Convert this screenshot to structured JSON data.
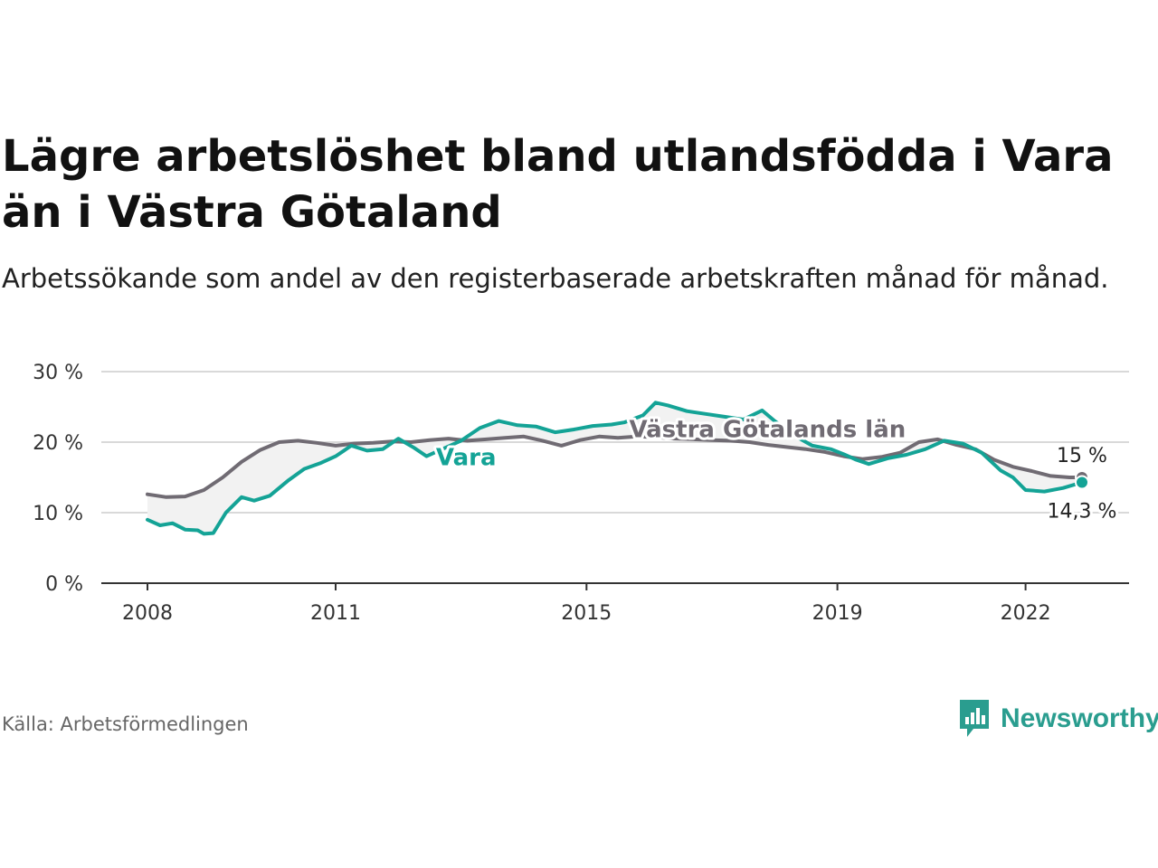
{
  "title": "Lägre arbetslöshet bland utlandsfödda i Vara än i Västra Götaland",
  "subtitle": "Arbetssökande som andel av den registerbaserade arbetskraften månad för månad.",
  "source": "Källa: Arbetsförmedlingen",
  "brand": {
    "name": "Newsworthy",
    "icon": "newsworthy-logo-icon",
    "color": "#2a9d8f"
  },
  "chart_data": {
    "type": "line",
    "title": "Lägre arbetslöshet bland utlandsfödda i Vara än i Västra Götaland",
    "ylim": [
      0,
      30
    ],
    "yticks": [
      0,
      10,
      20,
      30
    ],
    "ytick_labels": [
      "0 %",
      "10 %",
      "20 %",
      "30 %"
    ],
    "xlim": [
      2008.0,
      2022.9
    ],
    "xticks": [
      2008,
      2011,
      2015,
      2019,
      2022
    ],
    "xtick_labels": [
      "2008",
      "2011",
      "2015",
      "2019",
      "2022"
    ],
    "grid": true,
    "series": [
      {
        "name": "Västra Götalands län",
        "label": "Västra Götalands län",
        "color": "#706b73",
        "end_label": "15 %",
        "points": [
          [
            2008.0,
            12.6
          ],
          [
            2008.3,
            12.2
          ],
          [
            2008.6,
            12.3
          ],
          [
            2008.9,
            13.2
          ],
          [
            2009.2,
            15.0
          ],
          [
            2009.5,
            17.2
          ],
          [
            2009.8,
            18.9
          ],
          [
            2010.1,
            20.0
          ],
          [
            2010.4,
            20.2
          ],
          [
            2010.7,
            19.9
          ],
          [
            2011.0,
            19.5
          ],
          [
            2011.3,
            19.8
          ],
          [
            2011.6,
            19.9
          ],
          [
            2011.9,
            20.1
          ],
          [
            2012.2,
            20.0
          ],
          [
            2012.5,
            20.3
          ],
          [
            2012.8,
            20.5
          ],
          [
            2013.1,
            20.2
          ],
          [
            2013.4,
            20.4
          ],
          [
            2013.7,
            20.6
          ],
          [
            2014.0,
            20.8
          ],
          [
            2014.3,
            20.2
          ],
          [
            2014.6,
            19.5
          ],
          [
            2014.9,
            20.3
          ],
          [
            2015.2,
            20.8
          ],
          [
            2015.5,
            20.6
          ],
          [
            2015.8,
            20.8
          ],
          [
            2016.1,
            20.7
          ],
          [
            2016.4,
            20.5
          ],
          [
            2016.7,
            20.4
          ],
          [
            2017.0,
            20.3
          ],
          [
            2017.3,
            20.2
          ],
          [
            2017.6,
            20.0
          ],
          [
            2017.9,
            19.6
          ],
          [
            2018.2,
            19.3
          ],
          [
            2018.5,
            19.0
          ],
          [
            2018.8,
            18.6
          ],
          [
            2019.1,
            18.0
          ],
          [
            2019.4,
            17.6
          ],
          [
            2019.7,
            17.9
          ],
          [
            2020.0,
            18.5
          ],
          [
            2020.3,
            20.0
          ],
          [
            2020.6,
            20.4
          ],
          [
            2020.9,
            19.6
          ],
          [
            2021.2,
            19.0
          ],
          [
            2021.5,
            17.5
          ],
          [
            2021.8,
            16.5
          ],
          [
            2022.1,
            15.9
          ],
          [
            2022.4,
            15.2
          ],
          [
            2022.7,
            15.0
          ],
          [
            2022.9,
            15.0
          ]
        ]
      },
      {
        "name": "Vara",
        "label": "Vara",
        "color": "#14a396",
        "end_label": "14,3 %",
        "points": [
          [
            2008.0,
            9.0
          ],
          [
            2008.2,
            8.2
          ],
          [
            2008.4,
            8.5
          ],
          [
            2008.6,
            7.6
          ],
          [
            2008.8,
            7.5
          ],
          [
            2008.9,
            7.0
          ],
          [
            2009.05,
            7.1
          ],
          [
            2009.25,
            10.0
          ],
          [
            2009.5,
            12.2
          ],
          [
            2009.7,
            11.7
          ],
          [
            2009.95,
            12.4
          ],
          [
            2010.25,
            14.6
          ],
          [
            2010.5,
            16.2
          ],
          [
            2010.75,
            17.0
          ],
          [
            2011.0,
            18.0
          ],
          [
            2011.25,
            19.5
          ],
          [
            2011.5,
            18.8
          ],
          [
            2011.75,
            19.0
          ],
          [
            2012.0,
            20.5
          ],
          [
            2012.25,
            19.2
          ],
          [
            2012.45,
            18.0
          ],
          [
            2013.0,
            20.2
          ],
          [
            2013.3,
            22.0
          ],
          [
            2013.6,
            23.0
          ],
          [
            2013.9,
            22.4
          ],
          [
            2014.2,
            22.2
          ],
          [
            2014.5,
            21.4
          ],
          [
            2014.8,
            21.8
          ],
          [
            2015.1,
            22.3
          ],
          [
            2015.4,
            22.5
          ],
          [
            2015.6,
            22.8
          ],
          [
            2015.9,
            23.8
          ],
          [
            2016.1,
            25.6
          ],
          [
            2016.3,
            25.2
          ],
          [
            2016.6,
            24.4
          ],
          [
            2016.9,
            24.0
          ],
          [
            2017.2,
            23.6
          ],
          [
            2017.5,
            23.2
          ],
          [
            2017.8,
            24.5
          ],
          [
            2018.0,
            23.0
          ],
          [
            2018.3,
            21.0
          ],
          [
            2018.6,
            19.5
          ],
          [
            2018.9,
            19.0
          ],
          [
            2019.1,
            18.3
          ],
          [
            2019.3,
            17.5
          ],
          [
            2019.5,
            16.9
          ],
          [
            2019.8,
            17.7
          ],
          [
            2020.1,
            18.2
          ],
          [
            2020.4,
            19.0
          ],
          [
            2020.7,
            20.2
          ],
          [
            2021.0,
            19.8
          ],
          [
            2021.3,
            18.5
          ],
          [
            2021.6,
            16.0
          ],
          [
            2021.8,
            15.0
          ],
          [
            2022.0,
            13.2
          ],
          [
            2022.3,
            13.0
          ],
          [
            2022.6,
            13.5
          ],
          [
            2022.9,
            14.3
          ]
        ]
      }
    ]
  }
}
